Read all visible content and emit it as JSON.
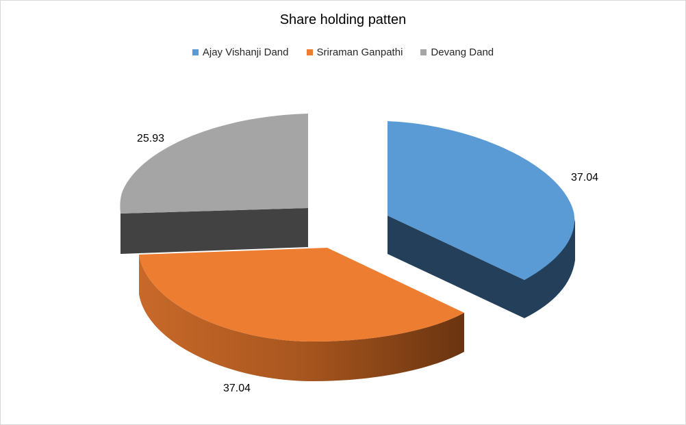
{
  "chart_data": {
    "type": "pie",
    "title": "Share holding patten",
    "series": [
      {
        "name": "Ajay Vishanji Dand",
        "value": 37.04,
        "color": "#5b9bd5",
        "side_color": "#243f5a"
      },
      {
        "name": "Sriraman Ganpathi",
        "value": 37.04,
        "color": "#ed7d31",
        "side_color": "#8a4a1f"
      },
      {
        "name": "Devang Dand",
        "value": 25.93,
        "color": "#a5a5a5",
        "side_color": "#424242"
      }
    ],
    "data_labels": [
      "37.04",
      "37.04",
      "25.93"
    ],
    "legend_position": "top",
    "style": "3d-exploded"
  }
}
